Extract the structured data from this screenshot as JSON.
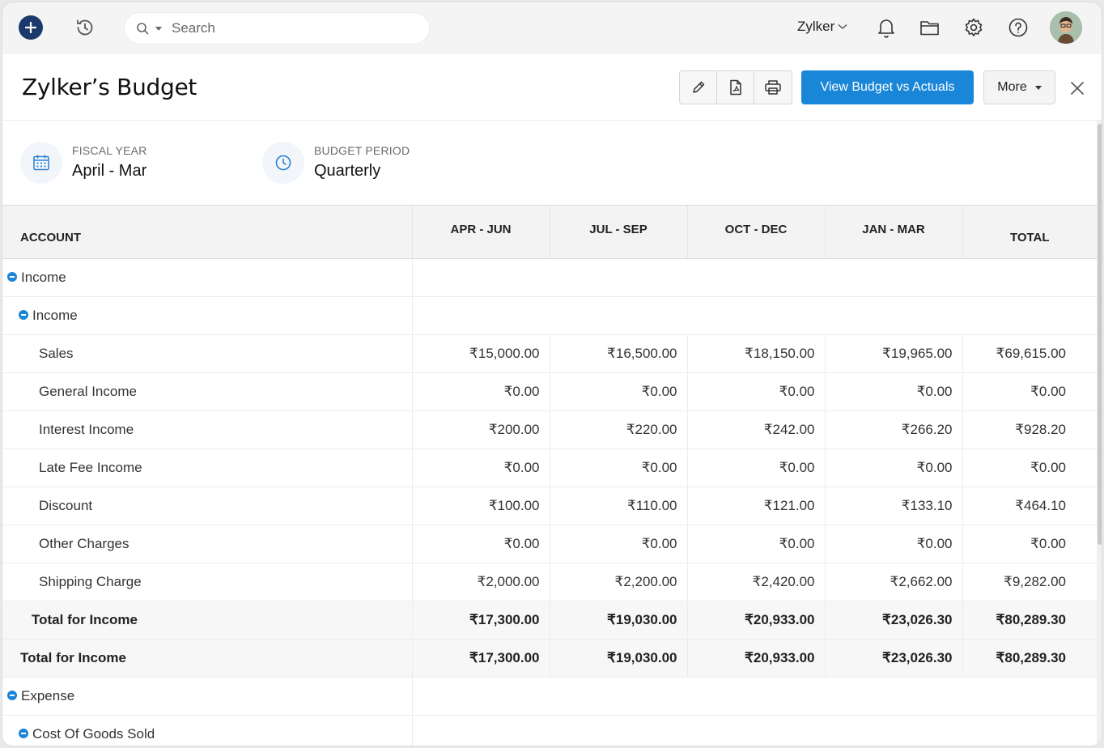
{
  "topbar": {
    "search_placeholder": "Search",
    "org_name": "Zylker",
    "icons": [
      "plus-icon",
      "history-icon",
      "search-icon",
      "bell-icon",
      "folder-icon",
      "gear-icon",
      "help-icon",
      "avatar"
    ]
  },
  "header": {
    "title": "Zylker’s Budget",
    "primary_button": "View Budget vs Actuals",
    "more_button": "More",
    "toolbar_icons": [
      "edit-icon",
      "pdf-icon",
      "print-icon"
    ],
    "accent_color": "#1a86d8"
  },
  "info": {
    "fiscal_year_label": "FISCAL YEAR",
    "fiscal_year_value": "April - Mar",
    "budget_period_label": "BUDGET PERIOD",
    "budget_period_value": "Quarterly"
  },
  "table": {
    "headers": [
      "ACCOUNT",
      "APR - JUN",
      "JUL - SEP",
      "OCT - DEC",
      "JAN - MAR",
      "TOTAL"
    ],
    "rows": [
      {
        "kind": "group",
        "level": 0,
        "account": "Income",
        "values": []
      },
      {
        "kind": "group",
        "level": 1,
        "account": "Income",
        "values": []
      },
      {
        "kind": "item",
        "level": 2,
        "account": "Sales",
        "values": [
          "₹15,000.00",
          "₹16,500.00",
          "₹18,150.00",
          "₹19,965.00",
          "₹69,615.00"
        ]
      },
      {
        "kind": "item",
        "level": 2,
        "account": "General Income",
        "values": [
          "₹0.00",
          "₹0.00",
          "₹0.00",
          "₹0.00",
          "₹0.00"
        ]
      },
      {
        "kind": "item",
        "level": 2,
        "account": "Interest Income",
        "values": [
          "₹200.00",
          "₹220.00",
          "₹242.00",
          "₹266.20",
          "₹928.20"
        ]
      },
      {
        "kind": "item",
        "level": 2,
        "account": "Late Fee Income",
        "values": [
          "₹0.00",
          "₹0.00",
          "₹0.00",
          "₹0.00",
          "₹0.00"
        ]
      },
      {
        "kind": "item",
        "level": 2,
        "account": "Discount",
        "values": [
          "₹100.00",
          "₹110.00",
          "₹121.00",
          "₹133.10",
          "₹464.10"
        ]
      },
      {
        "kind": "item",
        "level": 2,
        "account": "Other Charges",
        "values": [
          "₹0.00",
          "₹0.00",
          "₹0.00",
          "₹0.00",
          "₹0.00"
        ]
      },
      {
        "kind": "item",
        "level": 2,
        "account": "Shipping Charge",
        "values": [
          "₹2,000.00",
          "₹2,200.00",
          "₹2,420.00",
          "₹2,662.00",
          "₹9,282.00"
        ]
      },
      {
        "kind": "total",
        "level": 1,
        "account": "Total for Income",
        "values": [
          "₹17,300.00",
          "₹19,030.00",
          "₹20,933.00",
          "₹23,026.30",
          "₹80,289.30"
        ]
      },
      {
        "kind": "total",
        "level": 0,
        "account": "Total for Income",
        "values": [
          "₹17,300.00",
          "₹19,030.00",
          "₹20,933.00",
          "₹23,026.30",
          "₹80,289.30"
        ]
      },
      {
        "kind": "group",
        "level": 0,
        "account": "Expense",
        "values": []
      },
      {
        "kind": "group",
        "level": 1,
        "account": "Cost Of Goods Sold",
        "values": []
      }
    ]
  }
}
